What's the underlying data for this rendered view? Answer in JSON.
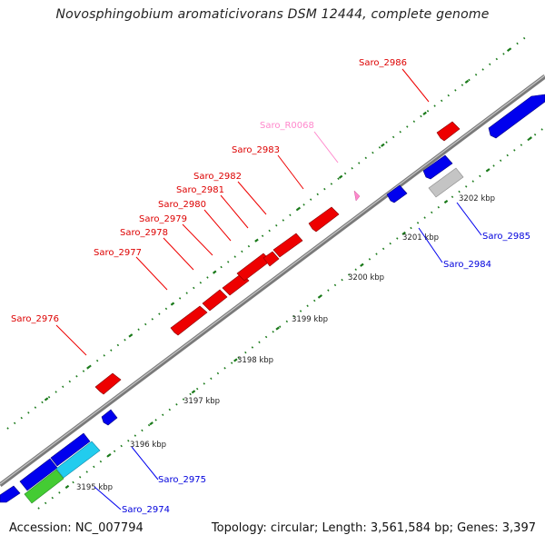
{
  "title": "Novosphingobium aromaticivorans DSM 12444, complete genome",
  "footer": {
    "accession": "Accession: NC_007794",
    "summary": "Topology: circular; Length: 3,561,584 bp; Genes: 3,397"
  },
  "colors": {
    "forward_gene": "#ff0000",
    "reverse_gene": "#0000ff",
    "pseudo_gene": "#c0c0c0",
    "rna_label": "#ff88cc",
    "cyan_gene": "#22ccee",
    "green_gene": "#44cc33",
    "backbone": "#808080",
    "gc_dots": "#1a7a1a"
  },
  "tick_labels": [
    "3195 kbp",
    "3196 kbp",
    "3197 kbp",
    "3198 kbp",
    "3199 kbp",
    "3200 kbp",
    "3201 kbp",
    "3202 kbp"
  ],
  "forward_gene_labels": [
    "Saro_2976",
    "Saro_2977",
    "Saro_2978",
    "Saro_2979",
    "Saro_2980",
    "Saro_2981",
    "Saro_2982",
    "Saro_2983",
    "Saro_2986"
  ],
  "rna_gene_labels": [
    "Saro_R0068"
  ],
  "reverse_gene_labels": [
    "Saro_2974",
    "Saro_2975",
    "Saro_2984",
    "Saro_2985"
  ]
}
